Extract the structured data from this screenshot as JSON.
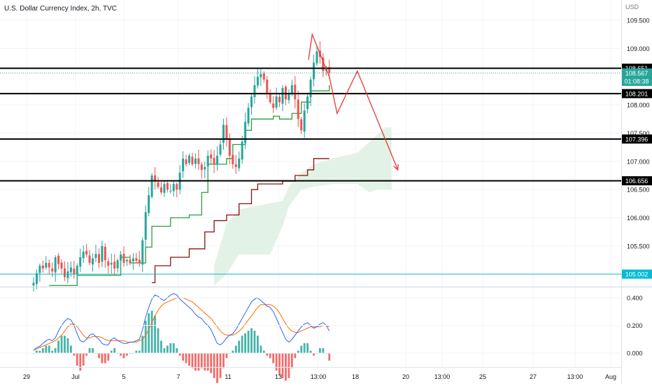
{
  "header": {
    "title": "U.S. Dollar Currency Index, 2h, TVC",
    "currency": "USD"
  },
  "colors": {
    "up": "#26a69a",
    "down": "#ef5350",
    "conversion_line": "#2e9d3a",
    "base_line": "#8b1010",
    "cloud": "#e3f2e6",
    "projection": "#e53935",
    "level_line": "#000000",
    "cyan_level": "#00bcd4",
    "macd_line": "#2962ff",
    "signal_line": "#ff6d00",
    "hist_pos": "#26a69a",
    "hist_neg": "#ef5350"
  },
  "chart_data": {
    "type": "candlestick",
    "symbol": "U.S. Dollar Currency Index",
    "interval": "2h",
    "source": "TVC",
    "price_axis": {
      "ticks": [
        "109.500",
        "109.000",
        "108.000",
        "107.500",
        "107.000",
        "106.500",
        "106.000",
        "105.500"
      ],
      "range": [
        104.78,
        109.86
      ]
    },
    "time_axis": {
      "ticks": [
        "29",
        "Jul",
        "5",
        "7",
        "11",
        "13",
        "13:00",
        "18",
        "20",
        "13:00",
        "25",
        "27",
        "13:00",
        "Aug"
      ]
    },
    "levels": [
      {
        "label": "108.651",
        "value": 108.651
      },
      {
        "label": "108.201",
        "value": 108.201
      },
      {
        "label": "107.396",
        "value": 107.396
      },
      {
        "label": "106.656",
        "value": 106.656
      }
    ],
    "cyan_level": {
      "label": "105.002",
      "value": 105.002
    },
    "last_price": {
      "label": "108.567",
      "value": 108.567,
      "countdown": "01:08:38"
    },
    "close_path": [
      104.85,
      105.02,
      105.15,
      105.1,
      105.2,
      105.12,
      105.05,
      105.3,
      105.18,
      105.1,
      104.95,
      105.05,
      105.12,
      105.0,
      105.15,
      105.3,
      105.4,
      105.35,
      105.2,
      105.28,
      105.36,
      105.2,
      105.5,
      105.25,
      105.15,
      105.2,
      105.1,
      105.25,
      105.35,
      105.2,
      105.25,
      105.2,
      105.28,
      105.24,
      105.2,
      105.6,
      106.1,
      106.4,
      106.75,
      106.65,
      106.55,
      106.45,
      106.6,
      106.5,
      106.48,
      106.6,
      106.5,
      106.8,
      107.05,
      106.95,
      107.1,
      106.95,
      107.05,
      106.95,
      106.85,
      106.9,
      107.1,
      107.05,
      106.95,
      107.1,
      107.3,
      107.65,
      107.4,
      107.1,
      106.95,
      106.9,
      107.05,
      107.35,
      107.7,
      107.95,
      108.15,
      108.35,
      108.5,
      108.55,
      108.45,
      108.2,
      108.05,
      107.95,
      108.15,
      108.05,
      108.3,
      108.1,
      108.2,
      108.35,
      108.1,
      107.75,
      107.55,
      107.9,
      108.15,
      108.45,
      108.75,
      108.95,
      108.85,
      108.6,
      108.65,
      108.567
    ],
    "conversion_line": [
      {
        "x": 5,
        "price": 104.8
      },
      {
        "x": 14,
        "price": 104.98
      },
      {
        "x": 28,
        "price": 105.3
      },
      {
        "x": 31,
        "price": 105.2
      },
      {
        "x": 36,
        "price": 105.48
      },
      {
        "x": 38,
        "price": 105.85
      },
      {
        "x": 44,
        "price": 106.0
      },
      {
        "x": 50,
        "price": 106.05
      },
      {
        "x": 54,
        "price": 106.45
      },
      {
        "x": 56,
        "price": 106.95
      },
      {
        "x": 62,
        "price": 107.05
      },
      {
        "x": 64,
        "price": 107.3
      },
      {
        "x": 68,
        "price": 107.55
      },
      {
        "x": 70,
        "price": 107.75
      },
      {
        "x": 77,
        "price": 107.8
      },
      {
        "x": 79,
        "price": 107.75
      },
      {
        "x": 83,
        "price": 107.85
      },
      {
        "x": 86,
        "price": 108.05
      },
      {
        "x": 89,
        "price": 108.25
      },
      {
        "x": 95,
        "price": 108.35
      }
    ],
    "base_line": [
      {
        "x": 38,
        "price": 104.85
      },
      {
        "x": 39,
        "price": 105.15
      },
      {
        "x": 44,
        "price": 105.3
      },
      {
        "x": 50,
        "price": 105.45
      },
      {
        "x": 55,
        "price": 105.75
      },
      {
        "x": 58,
        "price": 105.95
      },
      {
        "x": 62,
        "price": 106.05
      },
      {
        "x": 66,
        "price": 106.25
      },
      {
        "x": 70,
        "price": 106.5
      },
      {
        "x": 72,
        "price": 106.6
      },
      {
        "x": 76,
        "price": 106.6
      },
      {
        "x": 80,
        "price": 106.65
      },
      {
        "x": 84,
        "price": 106.75
      },
      {
        "x": 88,
        "price": 106.85
      },
      {
        "x": 90,
        "price": 107.05
      },
      {
        "x": 95,
        "price": 107.05
      }
    ],
    "cloud_upper": [
      {
        "x": 58,
        "price": 105.15
      },
      {
        "x": 62,
        "price": 105.9
      },
      {
        "x": 66,
        "price": 106.15
      },
      {
        "x": 80,
        "price": 106.3
      },
      {
        "x": 82,
        "price": 106.55
      },
      {
        "x": 86,
        "price": 106.8
      },
      {
        "x": 90,
        "price": 106.95
      },
      {
        "x": 96,
        "price": 107.05
      },
      {
        "x": 104,
        "price": 107.15
      },
      {
        "x": 108,
        "price": 107.35
      },
      {
        "x": 113,
        "price": 107.6
      },
      {
        "x": 115,
        "price": 107.6
      }
    ],
    "cloud_lower": [
      {
        "x": 58,
        "price": 104.8
      },
      {
        "x": 62,
        "price": 105.0
      },
      {
        "x": 66,
        "price": 105.35
      },
      {
        "x": 76,
        "price": 105.35
      },
      {
        "x": 80,
        "price": 105.85
      },
      {
        "x": 82,
        "price": 106.2
      },
      {
        "x": 86,
        "price": 106.5
      },
      {
        "x": 90,
        "price": 106.55
      },
      {
        "x": 96,
        "price": 106.6
      },
      {
        "x": 104,
        "price": 106.6
      },
      {
        "x": 108,
        "price": 106.45
      },
      {
        "x": 110,
        "price": 106.5
      },
      {
        "x": 115,
        "price": 106.5
      }
    ],
    "projection": [
      {
        "x": 88.3,
        "price": 108.8
      },
      {
        "x": 89.5,
        "price": 109.25
      },
      {
        "x": 95,
        "price": 108.5
      },
      {
        "x": 97.5,
        "price": 107.85
      },
      {
        "x": 104,
        "price": 108.6
      },
      {
        "x": 117,
        "price": 106.85
      }
    ],
    "macd_axis": {
      "ticks": [
        "0.400",
        "0.200",
        "0.000"
      ],
      "range": [
        -0.1,
        0.47
      ]
    },
    "macd_line": [
      0.02,
      0.04,
      0.05,
      0.07,
      0.09,
      0.1,
      0.09,
      0.11,
      0.16,
      0.2,
      0.23,
      0.25,
      0.24,
      0.2,
      0.14,
      0.09,
      0.08,
      0.1,
      0.13,
      0.14,
      0.12,
      0.1,
      0.07,
      0.06,
      0.06,
      0.1,
      0.11,
      0.09,
      0.08,
      0.07,
      0.07,
      0.08,
      0.08,
      0.09,
      0.1,
      0.17,
      0.26,
      0.33,
      0.39,
      0.42,
      0.41,
      0.39,
      0.38,
      0.4,
      0.42,
      0.43,
      0.42,
      0.39,
      0.37,
      0.35,
      0.33,
      0.31,
      0.28,
      0.26,
      0.25,
      0.22,
      0.2,
      0.17,
      0.12,
      0.07,
      0.06,
      0.08,
      0.11,
      0.13,
      0.14,
      0.17,
      0.21,
      0.25,
      0.29,
      0.33,
      0.37,
      0.39,
      0.4,
      0.38,
      0.36,
      0.34,
      0.33,
      0.3,
      0.25,
      0.2,
      0.15,
      0.1,
      0.08,
      0.1,
      0.13,
      0.16,
      0.19,
      0.21,
      0.22,
      0.2,
      0.18,
      0.19,
      0.21,
      0.22,
      0.2,
      0.16
    ],
    "signal_line": [
      0.02,
      0.03,
      0.04,
      0.05,
      0.06,
      0.07,
      0.08,
      0.09,
      0.11,
      0.13,
      0.16,
      0.19,
      0.21,
      0.21,
      0.19,
      0.16,
      0.13,
      0.11,
      0.11,
      0.12,
      0.12,
      0.12,
      0.11,
      0.1,
      0.09,
      0.09,
      0.09,
      0.09,
      0.09,
      0.09,
      0.08,
      0.08,
      0.08,
      0.08,
      0.09,
      0.1,
      0.13,
      0.17,
      0.22,
      0.27,
      0.31,
      0.34,
      0.36,
      0.37,
      0.38,
      0.39,
      0.4,
      0.4,
      0.4,
      0.39,
      0.38,
      0.37,
      0.35,
      0.33,
      0.31,
      0.29,
      0.27,
      0.25,
      0.22,
      0.19,
      0.16,
      0.14,
      0.13,
      0.13,
      0.13,
      0.14,
      0.16,
      0.18,
      0.21,
      0.24,
      0.27,
      0.3,
      0.33,
      0.35,
      0.35,
      0.35,
      0.35,
      0.34,
      0.32,
      0.29,
      0.25,
      0.21,
      0.18,
      0.16,
      0.15,
      0.15,
      0.16,
      0.17,
      0.18,
      0.19,
      0.19,
      0.19,
      0.19,
      0.2,
      0.2,
      0.19
    ]
  }
}
